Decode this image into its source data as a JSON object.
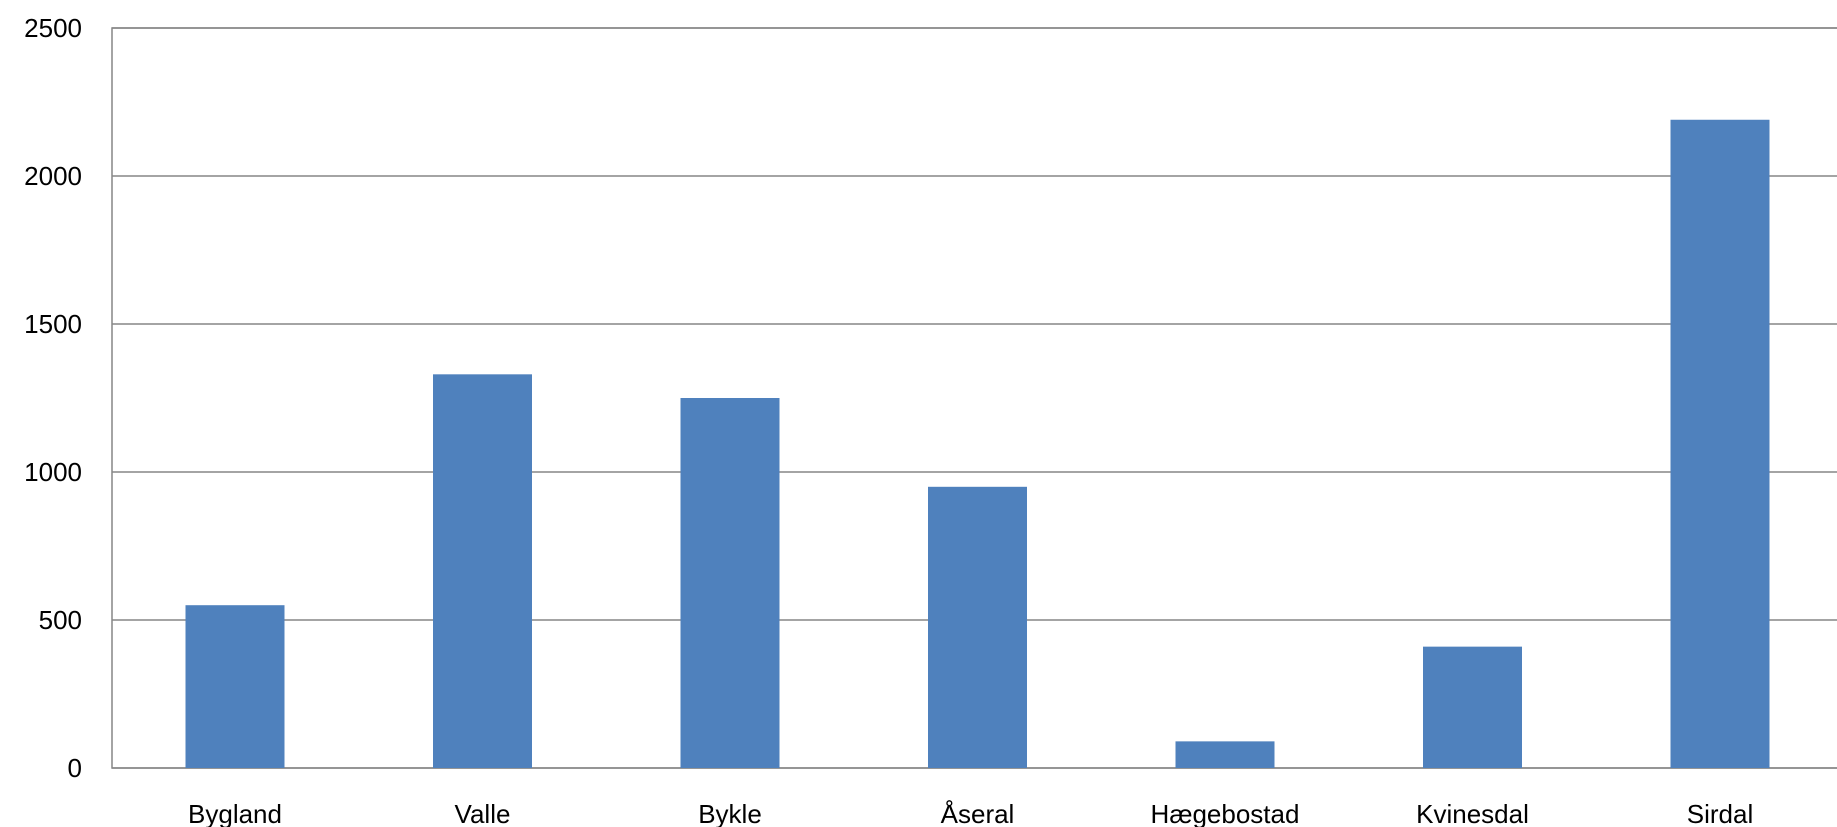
{
  "chart_data": {
    "type": "bar",
    "title": "",
    "xlabel": "",
    "ylabel": "",
    "categories": [
      "Bygland",
      "Valle",
      "Bykle",
      "Åseral",
      "Hægebostad",
      "Kvinesdal",
      "Sirdal"
    ],
    "values": [
      550,
      1330,
      1250,
      950,
      90,
      410,
      2190
    ],
    "ylim": [
      0,
      2500
    ],
    "yticks": [
      0,
      500,
      1000,
      1500,
      2000,
      2500
    ],
    "grid": true,
    "legend": "none",
    "colors": {
      "bar": "#4F81BD",
      "grid": "#868686"
    }
  }
}
